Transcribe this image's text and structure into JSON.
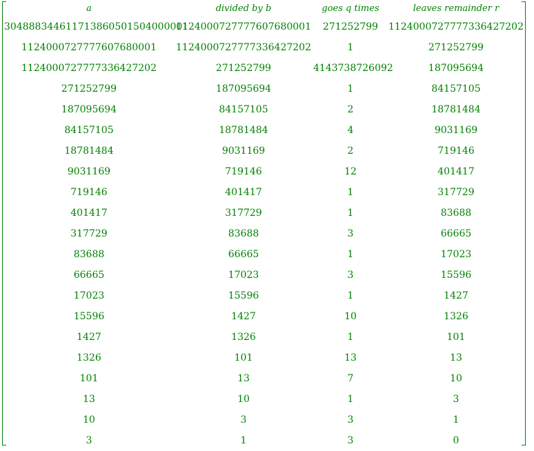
{
  "headers": [
    "a",
    "divided by b",
    "goes q times",
    "leaves remainder r"
  ],
  "rows": [
    [
      "304888344611713860501504000001",
      "1124000727777607680001",
      "271252799",
      "1124000727777336427202"
    ],
    [
      "1124000727777607680001",
      "1124000727777336427202",
      "1",
      "271252799"
    ],
    [
      "1124000727777336427202",
      "271252799",
      "4143738726092",
      "187095694"
    ],
    [
      "271252799",
      "187095694",
      "1",
      "84157105"
    ],
    [
      "187095694",
      "84157105",
      "2",
      "18781484"
    ],
    [
      "84157105",
      "18781484",
      "4",
      "9031169"
    ],
    [
      "18781484",
      "9031169",
      "2",
      "719146"
    ],
    [
      "9031169",
      "719146",
      "12",
      "401417"
    ],
    [
      "719146",
      "401417",
      "1",
      "317729"
    ],
    [
      "401417",
      "317729",
      "1",
      "83688"
    ],
    [
      "317729",
      "83688",
      "3",
      "66665"
    ],
    [
      "83688",
      "66665",
      "1",
      "17023"
    ],
    [
      "66665",
      "17023",
      "3",
      "15596"
    ],
    [
      "17023",
      "15596",
      "1",
      "1427"
    ],
    [
      "15596",
      "1427",
      "10",
      "1326"
    ],
    [
      "1427",
      "1326",
      "1",
      "101"
    ],
    [
      "1326",
      "101",
      "13",
      "13"
    ],
    [
      "101",
      "13",
      "7",
      "10"
    ],
    [
      "13",
      "10",
      "1",
      "3"
    ],
    [
      "10",
      "3",
      "3",
      "1"
    ],
    [
      "3",
      "1",
      "3",
      "0"
    ]
  ],
  "colors": {
    "text": "#008000",
    "background": "#ffffff"
  }
}
